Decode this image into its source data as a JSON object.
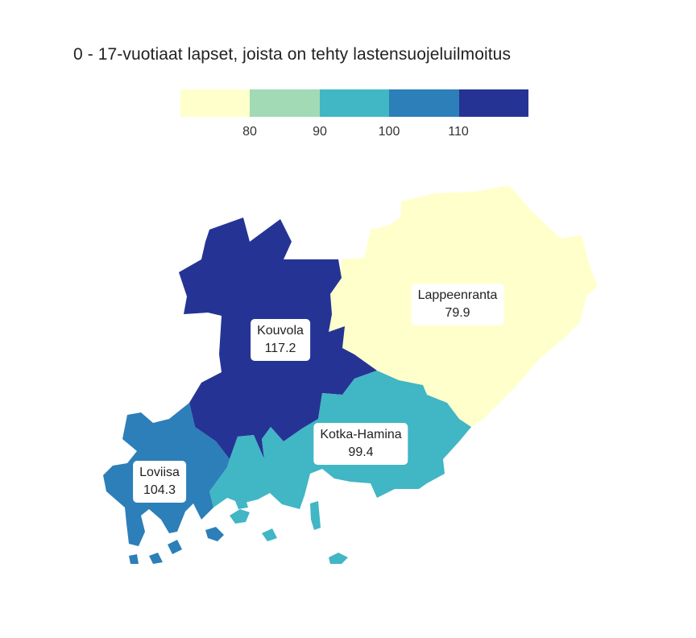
{
  "title": "0 - 17-vuotiaat lapset, joista on tehty lastensuojeluilmoitus",
  "legend": {
    "colors": [
      "#ffffcc",
      "#a1dab4",
      "#41b6c4",
      "#2c7fb8",
      "#253494"
    ],
    "ticks": [
      "80",
      "90",
      "100",
      "110"
    ]
  },
  "regions": [
    {
      "name": "Kouvola",
      "value": "117.2",
      "color": "#253494"
    },
    {
      "name": "Lappeenranta",
      "value": "79.9",
      "color": "#ffffcc"
    },
    {
      "name": "Kotka-Hamina",
      "value": "99.4",
      "color": "#41b6c4"
    },
    {
      "name": "Loviisa",
      "value": "104.3",
      "color": "#2c7fb8"
    }
  ]
}
